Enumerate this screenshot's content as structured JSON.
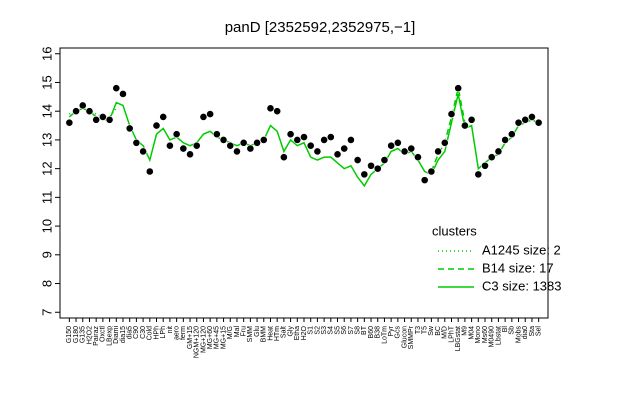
{
  "chart_data": {
    "type": "line",
    "title": "panD [2352592,2352975,−1]",
    "categories": [
      "G150",
      "G180",
      "G135",
      "H2O2",
      "Pairaz",
      "Oxctl",
      "LBexp",
      "Diami",
      "dia15",
      "dia5",
      "C90",
      "C30",
      "Cold",
      "HPh",
      "LPh",
      "nit",
      "aero",
      "ferm",
      "GM+15",
      "NGM+120",
      "MG+120",
      "MG+60",
      "MG+45",
      "MG+15",
      "M/G",
      "Mal",
      "Fru",
      "SMM",
      "Glu",
      "BMM",
      "Heat",
      "HTm",
      "Salt",
      "Gly",
      "Etha",
      "H2O",
      "S1",
      "S2",
      "S3",
      "S4",
      "S5",
      "S6",
      "S7",
      "S8",
      "BT",
      "B60",
      "B38",
      "LoTm",
      "Pyr",
      "Gcs",
      "Glucon",
      "SMMPr",
      "T3",
      "T5",
      "Sw",
      "BC",
      "M/D",
      "LPhT",
      "LBGstat",
      "M9",
      "M04",
      "Mono",
      "Ms60",
      "M0490",
      "Lbstat",
      "Bl",
      "Sb",
      "Mobs",
      "dia0",
      "Sta",
      "Sel"
    ],
    "ylim": [
      6.8,
      16.2
    ],
    "yticks": [
      7,
      8,
      9,
      10,
      11,
      12,
      13,
      14,
      15,
      16
    ],
    "legend_title": "clusters",
    "legend": "center right",
    "points": {
      "color": "#000000",
      "values": [
        13.6,
        14.0,
        14.2,
        14.0,
        13.7,
        13.8,
        13.7,
        14.8,
        14.6,
        13.4,
        12.9,
        12.6,
        11.9,
        13.5,
        13.8,
        12.8,
        13.2,
        12.7,
        12.5,
        12.8,
        13.8,
        13.9,
        13.2,
        13.0,
        12.8,
        12.6,
        12.9,
        12.7,
        12.9,
        13.0,
        14.1,
        14.0,
        12.4,
        13.2,
        13.0,
        13.1,
        12.8,
        12.6,
        13.0,
        13.1,
        12.5,
        12.7,
        13.0,
        12.3,
        11.8,
        12.1,
        12.0,
        12.3,
        12.8,
        12.9,
        12.6,
        12.7,
        12.4,
        11.6,
        11.9,
        12.6,
        12.9,
        13.9,
        14.8,
        13.5,
        13.7,
        11.8,
        12.1,
        12.4,
        12.6,
        13.0,
        13.2,
        13.6,
        13.7,
        13.8,
        13.6
      ]
    },
    "series": [
      {
        "name": "A1245 size: 2",
        "color": "#00cc00",
        "dash": "dotted",
        "values": [
          13.9,
          14.0,
          14.1,
          14.0,
          13.9,
          13.8,
          13.8,
          14.1,
          null,
          null,
          null,
          null,
          null,
          null,
          null,
          null,
          null,
          null,
          null,
          null,
          null,
          null,
          null,
          null,
          null,
          null,
          null,
          null,
          null,
          null,
          null,
          null,
          null,
          null,
          null,
          null,
          null,
          null,
          null,
          null,
          null,
          null,
          null,
          null,
          null,
          null,
          null,
          null,
          null,
          null,
          null,
          null,
          null,
          null,
          null,
          null,
          null,
          null,
          null,
          null,
          null,
          null,
          null,
          null,
          null,
          null,
          null,
          null,
          null,
          null,
          null
        ]
      },
      {
        "name": "B14 size: 17",
        "color": "#00cc00",
        "dash": "dashed",
        "values": [
          null,
          null,
          null,
          null,
          null,
          null,
          null,
          null,
          null,
          null,
          null,
          null,
          null,
          null,
          null,
          null,
          null,
          null,
          null,
          null,
          null,
          null,
          null,
          null,
          null,
          null,
          null,
          null,
          null,
          null,
          null,
          null,
          null,
          null,
          null,
          null,
          null,
          null,
          null,
          null,
          null,
          null,
          null,
          null,
          null,
          null,
          null,
          null,
          null,
          null,
          null,
          null,
          null,
          null,
          11.9,
          12.5,
          12.9,
          13.8,
          14.8,
          13.6,
          null,
          null,
          null,
          null,
          null,
          null,
          null,
          null,
          null,
          null,
          null
        ]
      },
      {
        "name": "C3 size: 1383",
        "color": "#00cc00",
        "dash": "solid",
        "values": [
          13.8,
          14.0,
          14.1,
          14.0,
          13.8,
          13.7,
          13.7,
          14.3,
          14.2,
          13.5,
          13.0,
          12.8,
          12.3,
          13.2,
          13.4,
          13.0,
          13.1,
          12.9,
          12.8,
          12.9,
          13.2,
          13.3,
          13.1,
          13.0,
          12.9,
          12.8,
          12.9,
          12.8,
          12.9,
          13.0,
          13.5,
          13.3,
          12.6,
          13.0,
          12.8,
          12.9,
          12.4,
          12.3,
          12.4,
          12.4,
          12.2,
          12.0,
          12.1,
          11.7,
          11.4,
          11.8,
          12.0,
          12.2,
          12.6,
          12.7,
          12.5,
          12.6,
          12.3,
          11.9,
          11.8,
          12.3,
          12.6,
          13.6,
          14.6,
          13.4,
          13.5,
          12.0,
          12.2,
          12.4,
          12.5,
          12.9,
          13.1,
          13.5,
          13.6,
          13.7,
          13.6
        ]
      }
    ]
  }
}
